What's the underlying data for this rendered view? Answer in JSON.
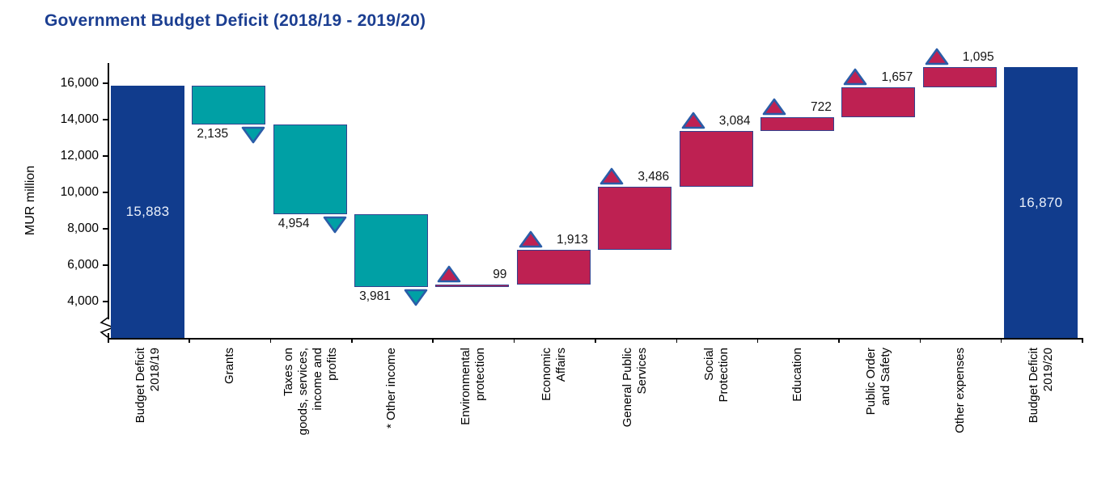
{
  "chart_data": {
    "type": "waterfall",
    "title": "Government Budget Deficit (2018/19 - 2019/20)",
    "ylabel": "MUR million",
    "grid": false,
    "legend": false,
    "axis_break": true,
    "ylim_shown": [
      4000,
      16000
    ],
    "y_axis": {
      "ticks": [
        {
          "value": 4000,
          "label": "4,000"
        },
        {
          "value": 6000,
          "label": "6,000"
        },
        {
          "value": 8000,
          "label": "8,000"
        },
        {
          "value": 10000,
          "label": "10,000"
        },
        {
          "value": 12000,
          "label": "12,000"
        },
        {
          "value": 14000,
          "label": "14,000"
        },
        {
          "value": 16000,
          "label": "16,000"
        }
      ]
    },
    "columns": [
      {
        "label": "Budget Deficit\n2018/19",
        "kind": "total",
        "value": 15883,
        "display": "15,883"
      },
      {
        "label": "Grants",
        "kind": "decrease",
        "value": 2135,
        "display": "2,135"
      },
      {
        "label": "Taxes on\ngoods, services,\nincome and\nprofits",
        "kind": "decrease",
        "value": 4954,
        "display": "4,954"
      },
      {
        "label": "* Other income",
        "kind": "decrease",
        "value": 3981,
        "display": "3,981"
      },
      {
        "label": "Environmental\nprotection",
        "kind": "increase",
        "value": 99,
        "display": "99"
      },
      {
        "label": "Economic\nAffairs",
        "kind": "increase",
        "value": 1913,
        "display": "1,913"
      },
      {
        "label": "General Public\nServices",
        "kind": "increase",
        "value": 3486,
        "display": "3,486"
      },
      {
        "label": "Social\nProtection",
        "kind": "increase",
        "value": 3084,
        "display": "3,084"
      },
      {
        "label": "Education",
        "kind": "increase",
        "value": 722,
        "display": "722"
      },
      {
        "label": "Public Order\nand Safety",
        "kind": "increase",
        "value": 1657,
        "display": "1,657"
      },
      {
        "label": "Other expenses",
        "kind": "increase",
        "value": 1095,
        "display": "1,095"
      },
      {
        "label": "Budget Deficit\n2019/20",
        "kind": "total",
        "value": 16870,
        "display": "16,870"
      }
    ],
    "colors": {
      "title": "#1B3E91",
      "total_bar": "#113C8D",
      "decrease_bar": "#00A0A5",
      "increase_bar": "#BE2152",
      "bar_border": "#33428F",
      "triangle_stroke": "#2A5DA8",
      "inside_label_text": "#EAF0FA",
      "axis": "#000000"
    }
  }
}
